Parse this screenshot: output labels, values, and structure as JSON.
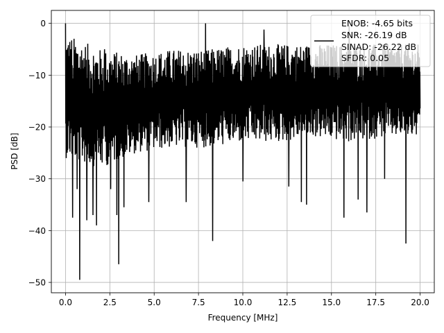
{
  "chart_data": {
    "type": "line",
    "xlabel": "Frequency [MHz]",
    "ylabel": "PSD [dB]",
    "xlim": [
      -0.8,
      20.8
    ],
    "ylim": [
      -52,
      2.5
    ],
    "xticks": [
      0.0,
      2.5,
      5.0,
      7.5,
      10.0,
      12.5,
      15.0,
      17.5,
      20.0
    ],
    "xtick_labels": [
      "0.0",
      "2.5",
      "5.0",
      "7.5",
      "10.0",
      "12.5",
      "15.0",
      "17.5",
      "20.0"
    ],
    "yticks": [
      0,
      -10,
      -20,
      -30,
      -40,
      -50
    ],
    "ytick_labels": [
      "0",
      "−10",
      "−20",
      "−30",
      "−40",
      "−50"
    ],
    "grid": true,
    "legend_position": "top-right",
    "legend_entries": [
      "ENOB: -4.65 bits",
      "SNR: -26.19 dB",
      "SINAD: -26.22 dB",
      "SFDR: 0.05"
    ],
    "series": [
      {
        "color": "#000000",
        "x_start": 0.0,
        "x_end": 20.0,
        "envelope_upper": [
          -2,
          -5,
          -6,
          -5,
          -5,
          -4,
          -4,
          -4,
          -4,
          -4,
          -4
        ],
        "envelope_lower": [
          -26,
          -28,
          -25,
          -24,
          -24,
          -23,
          -23,
          -22,
          -23,
          -22,
          -22
        ],
        "peaks": [
          {
            "x": 0.0,
            "y": 0.0
          },
          {
            "x": 2.2,
            "y": -5.0
          },
          {
            "x": 7.9,
            "y": 0.0
          },
          {
            "x": 11.2,
            "y": -1.2
          },
          {
            "x": 16.0,
            "y": -0.5
          }
        ],
        "dips": [
          {
            "x": 0.4,
            "y": -37.5
          },
          {
            "x": 0.65,
            "y": -32.0
          },
          {
            "x": 0.8,
            "y": -49.5
          },
          {
            "x": 1.2,
            "y": -38.0
          },
          {
            "x": 1.55,
            "y": -37.0
          },
          {
            "x": 1.75,
            "y": -39.0
          },
          {
            "x": 2.55,
            "y": -32.0
          },
          {
            "x": 2.9,
            "y": -37.0
          },
          {
            "x": 3.0,
            "y": -46.5
          },
          {
            "x": 3.3,
            "y": -35.5
          },
          {
            "x": 4.7,
            "y": -34.5
          },
          {
            "x": 6.8,
            "y": -34.5
          },
          {
            "x": 8.3,
            "y": -42.0
          },
          {
            "x": 10.0,
            "y": -30.5
          },
          {
            "x": 12.6,
            "y": -31.5
          },
          {
            "x": 13.3,
            "y": -34.5
          },
          {
            "x": 13.6,
            "y": -35.0
          },
          {
            "x": 15.7,
            "y": -37.5
          },
          {
            "x": 16.5,
            "y": -34.0
          },
          {
            "x": 17.0,
            "y": -36.5
          },
          {
            "x": 18.0,
            "y": -30.0
          },
          {
            "x": 19.2,
            "y": -42.5
          }
        ]
      }
    ]
  }
}
